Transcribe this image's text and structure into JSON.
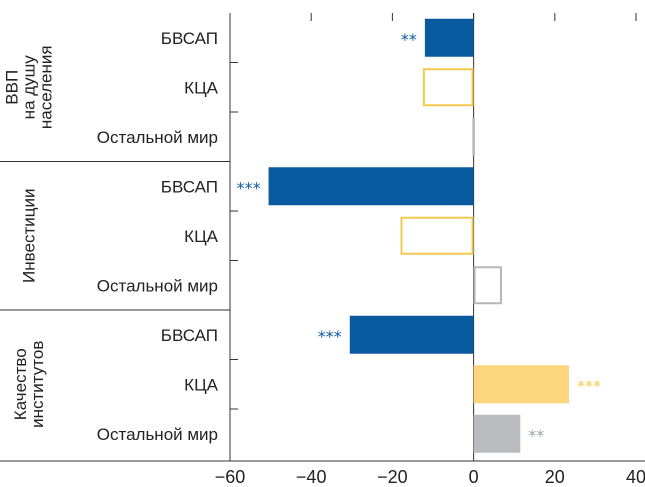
{
  "chart_data": {
    "type": "bar",
    "orientation": "horizontal",
    "xlim": [
      -60,
      40
    ],
    "x_ticks": [
      {
        "value": -60,
        "label": "−60"
      },
      {
        "value": -40,
        "label": "−40"
      },
      {
        "value": -20,
        "label": "−20"
      },
      {
        "value": 0,
        "label": "0"
      },
      {
        "value": 20,
        "label": "20"
      },
      {
        "value": 40,
        "label": "40"
      }
    ],
    "groups": [
      {
        "label_lines": [
          "ВВП",
          "на душу",
          "населения"
        ],
        "rows": [
          {
            "label": "БВСАП",
            "value": -12,
            "style": "filled",
            "color": "#0a5aa0",
            "stars": "**",
            "star_color": "#0a5aa0"
          },
          {
            "label": "КЦА",
            "value": -12.5,
            "style": "outline",
            "color": "#f2c94c",
            "stars": "",
            "star_color": "#f2c94c"
          },
          {
            "label": "Остальной мир",
            "value": -0.3,
            "style": "outline",
            "color": "#b5b7bb",
            "stars": "",
            "star_color": "#9fa3a8"
          }
        ]
      },
      {
        "label_lines": [
          "Инвестиции"
        ],
        "rows": [
          {
            "label": "БВСАП",
            "value": -50.5,
            "style": "filled",
            "color": "#0a5aa0",
            "stars": "***",
            "star_color": "#0a5aa0"
          },
          {
            "label": "КЦА",
            "value": -18,
            "style": "outline",
            "color": "#f2c94c",
            "stars": "",
            "star_color": "#f2c94c"
          },
          {
            "label": "Остальной мир",
            "value": 7,
            "style": "outline",
            "color": "#b5b7bb",
            "stars": "",
            "star_color": "#9fa3a8"
          }
        ]
      },
      {
        "label_lines": [
          "Качество",
          "институтов"
        ],
        "rows": [
          {
            "label": "БВСАП",
            "value": -30.5,
            "style": "filled",
            "color": "#0a5aa0",
            "stars": "***",
            "star_color": "#0a5aa0"
          },
          {
            "label": "КЦА",
            "value": 23.5,
            "style": "filled",
            "color": "#fdd57e",
            "stars": "***",
            "star_color": "#f2c94c"
          },
          {
            "label": "Остальной мир",
            "value": 11.5,
            "style": "filled",
            "color": "#b9bbbe",
            "stars": "**",
            "star_color": "#9fa3a8"
          }
        ]
      }
    ],
    "grid": false,
    "legend": "none"
  }
}
